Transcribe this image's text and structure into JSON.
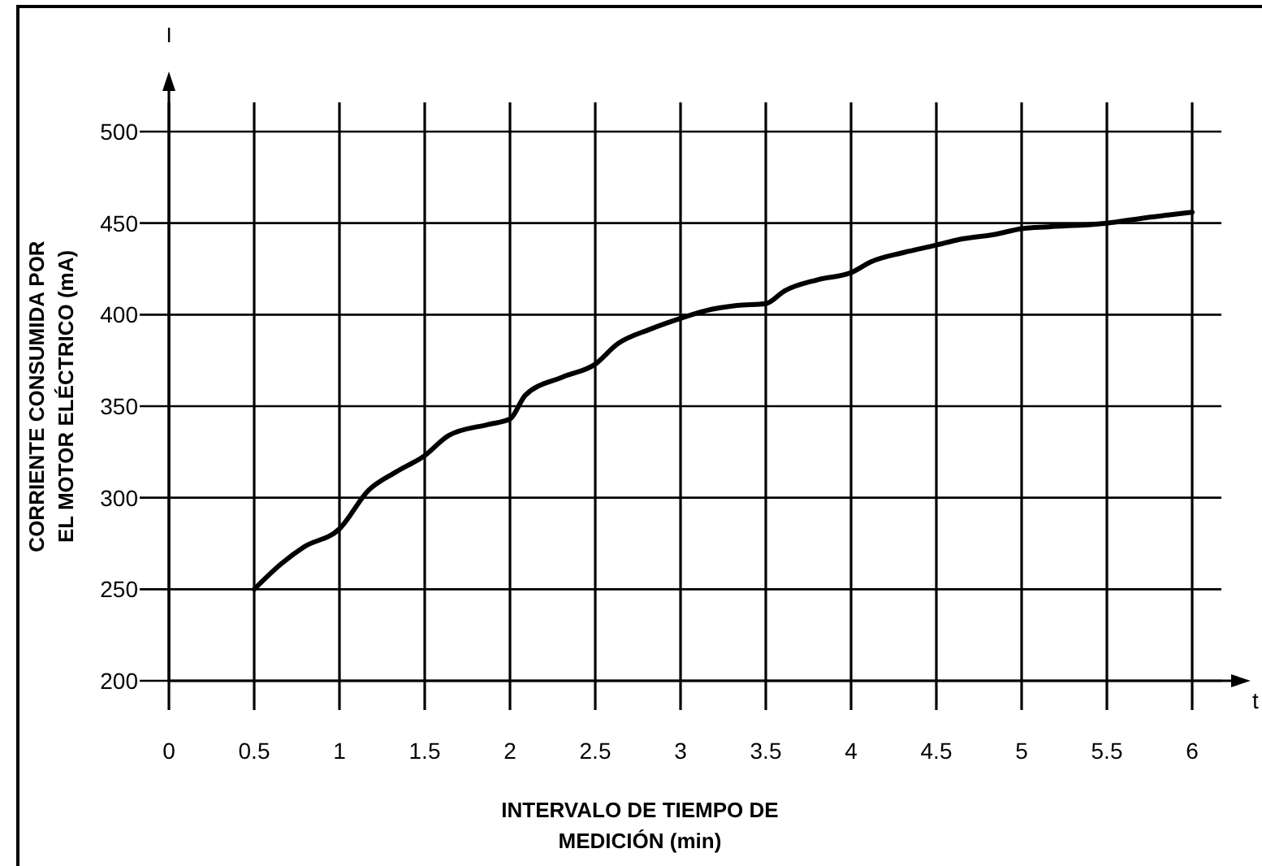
{
  "chart_data": {
    "type": "line",
    "xlabel": "INTERVALO DE TIEMPO DE\nMEDICIÓN (min)",
    "ylabel": "CORRIENTE CONSUMIDA POR\nEL MOTOR ELÉCTRICO (mA)",
    "annotations": [
      "I",
      "t"
    ],
    "x": [
      0.5,
      0.66,
      0.79,
      1,
      1.17,
      1.33,
      1.5,
      1.64,
      1.87,
      2,
      2.09,
      2.31,
      2.5,
      2.63,
      2.82,
      3,
      3.14,
      3.33,
      3.5,
      3.61,
      3.8,
      4,
      4.12,
      4.31,
      4.5,
      4.63,
      4.85,
      5,
      5.16,
      5.5,
      5.73,
      6
    ],
    "values": [
      250,
      264,
      273,
      283,
      304,
      314,
      323,
      334,
      340,
      343,
      356,
      366,
      373,
      384,
      392,
      398,
      402,
      405,
      406,
      413,
      419,
      423,
      429,
      434,
      438,
      441,
      444,
      447,
      448,
      450,
      453,
      456
    ],
    "color": "#000000",
    "xlim": [
      0,
      6
    ],
    "xticks": [
      0,
      0.5,
      1,
      1.5,
      2,
      2.5,
      3,
      3.5,
      4,
      4.5,
      5,
      5.5,
      6
    ],
    "ylim": [
      200,
      500
    ],
    "yticks": [
      200,
      250,
      300,
      350,
      400,
      450,
      500
    ],
    "grid": true
  }
}
